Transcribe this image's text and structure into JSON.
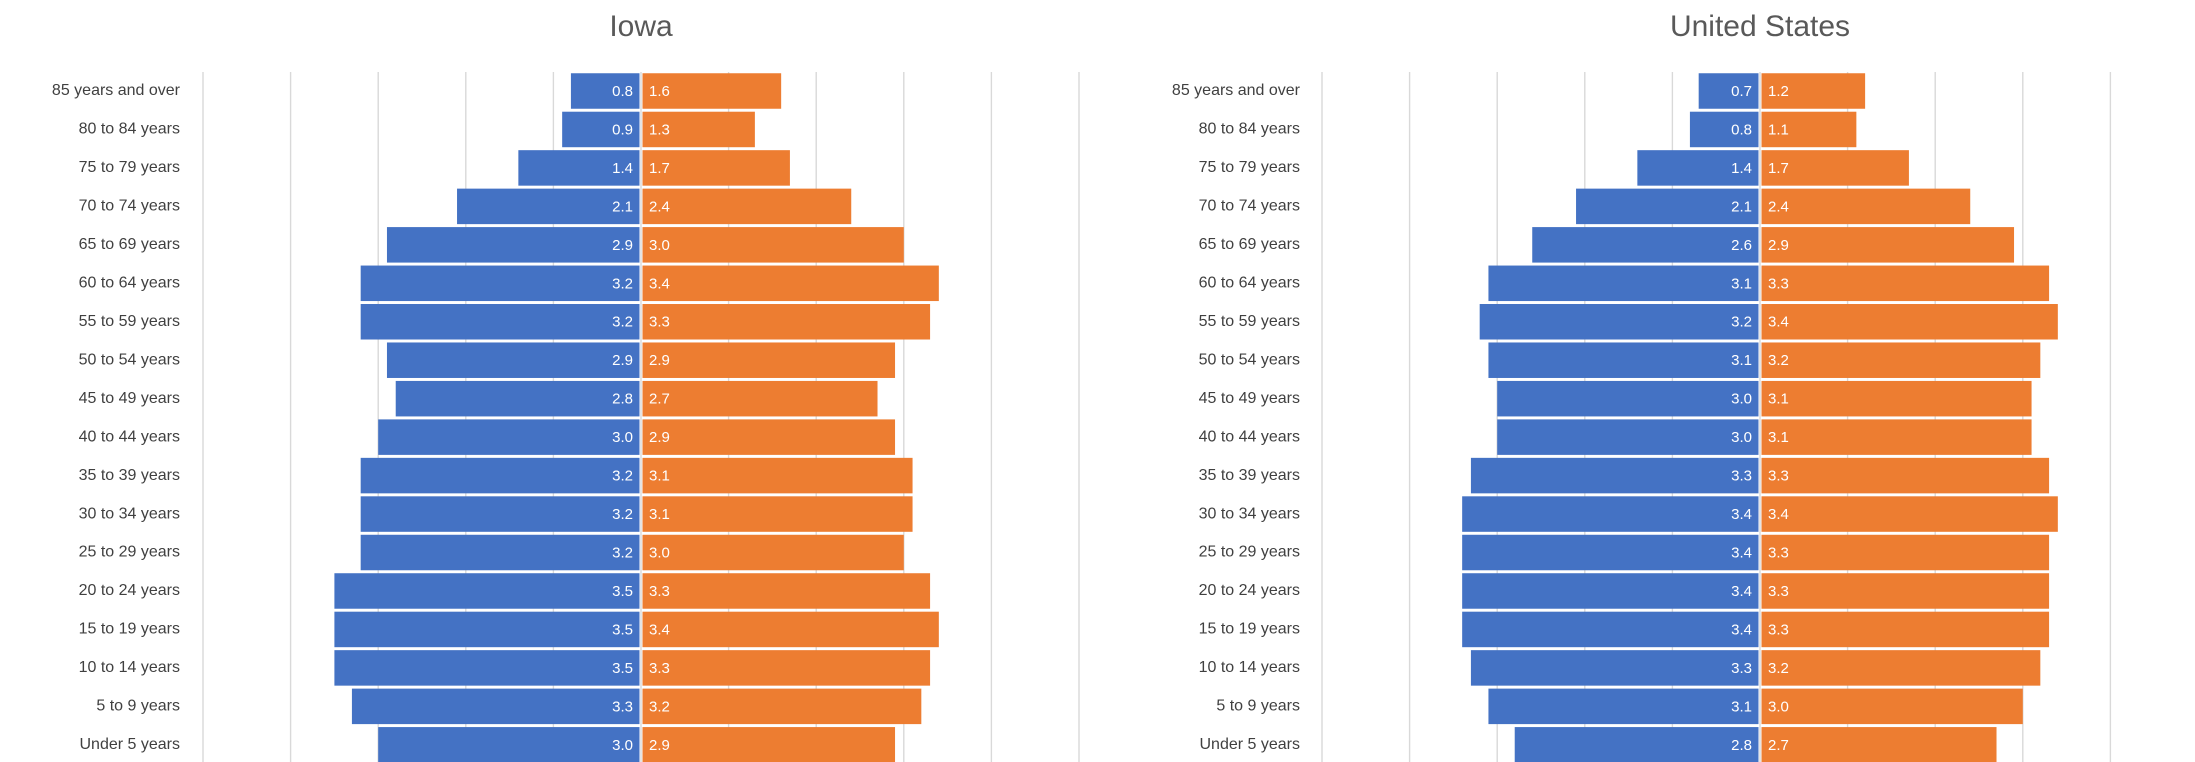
{
  "chart_data": [
    {
      "type": "pyramid",
      "title": "Iowa",
      "categories": [
        "85 years and over",
        "80 to 84 years",
        "75 to 79 years",
        "70 to 74 years",
        "65 to 69 years",
        "60 to 64 years",
        "55 to 59 years",
        "50 to 54 years",
        "45 to 49 years",
        "40 to 44 years",
        "35 to 39 years",
        "30 to 34 years",
        "25 to 29 years",
        "20 to 24 years",
        "15 to 19 years",
        "10 to 14 years",
        "5 to 9 years",
        "Under 5 years"
      ],
      "series": [
        {
          "color": "#4472c4",
          "values": [
            0.8,
            0.9,
            1.4,
            2.1,
            2.9,
            3.2,
            3.2,
            2.9,
            2.8,
            3.0,
            3.2,
            3.2,
            3.2,
            3.5,
            3.5,
            3.5,
            3.3,
            3.0
          ],
          "value_labels": [
            "0.8",
            "0.9",
            "1.4",
            "2.1",
            "2.9",
            "3.2",
            "3.2",
            "2.9",
            "2.8",
            "3.0",
            "3.2",
            "3.2",
            "3.2",
            "3.5",
            "3.5",
            "3.5",
            "3.3",
            "3.0"
          ]
        },
        {
          "color": "#ed7d31",
          "values": [
            1.6,
            1.3,
            1.7,
            2.4,
            3.0,
            3.4,
            3.3,
            2.9,
            2.7,
            2.9,
            3.1,
            3.1,
            3.0,
            3.3,
            3.4,
            3.3,
            3.2,
            2.9
          ],
          "value_labels": [
            "1.6",
            "1.3",
            "1.7",
            "2.4",
            "3.0",
            "3.4",
            "3.3",
            "2.9",
            "2.7",
            "2.9",
            "3.1",
            "3.1",
            "3.0",
            "3.3",
            "3.4",
            "3.3",
            "3.2",
            "2.9"
          ]
        }
      ],
      "xlim": [
        -5,
        5
      ],
      "xticks": [
        -5,
        -4,
        -3,
        -2,
        -1,
        0,
        1,
        2,
        3,
        4,
        5
      ],
      "grid": true
    },
    {
      "type": "pyramid",
      "title": "United States",
      "categories": [
        "85 years and over",
        "80 to 84 years",
        "75 to 79 years",
        "70 to 74 years",
        "65 to 69 years",
        "60 to 64 years",
        "55 to 59 years",
        "50 to 54 years",
        "45 to 49 years",
        "40 to 44 years",
        "35 to 39 years",
        "30 to 34 years",
        "25 to 29 years",
        "20 to 24 years",
        "15 to 19 years",
        "10 to 14 years",
        "5 to 9 years",
        "Under 5 years"
      ],
      "series": [
        {
          "color": "#4472c4",
          "values": [
            0.7,
            0.8,
            1.4,
            2.1,
            2.6,
            3.1,
            3.2,
            3.1,
            3.0,
            3.0,
            3.3,
            3.4,
            3.4,
            3.4,
            3.4,
            3.3,
            3.1,
            2.8
          ],
          "value_labels": [
            "0.7",
            "0.8",
            "1.4",
            "2.1",
            "2.6",
            "3.1",
            "3.2",
            "3.1",
            "3.0",
            "3.0",
            "3.3",
            "3.4",
            "3.4",
            "3.4",
            "3.4",
            "3.3",
            "3.1",
            "2.8"
          ]
        },
        {
          "color": "#ed7d31",
          "values": [
            1.2,
            1.1,
            1.7,
            2.4,
            2.9,
            3.3,
            3.4,
            3.2,
            3.1,
            3.1,
            3.3,
            3.4,
            3.3,
            3.3,
            3.3,
            3.2,
            3.0,
            2.7
          ],
          "value_labels": [
            "1.2",
            "1.1",
            "1.7",
            "2.4",
            "2.9",
            "3.3",
            "3.4",
            "3.2",
            "3.1",
            "3.1",
            "3.3",
            "3.4",
            "3.3",
            "3.3",
            "3.3",
            "3.2",
            "3.0",
            "2.7"
          ]
        }
      ],
      "xlim": [
        -5,
        5
      ],
      "xticks": [
        -5,
        -4,
        -3,
        -2,
        -1,
        0,
        1,
        2,
        3,
        4,
        5
      ],
      "grid": true
    }
  ]
}
